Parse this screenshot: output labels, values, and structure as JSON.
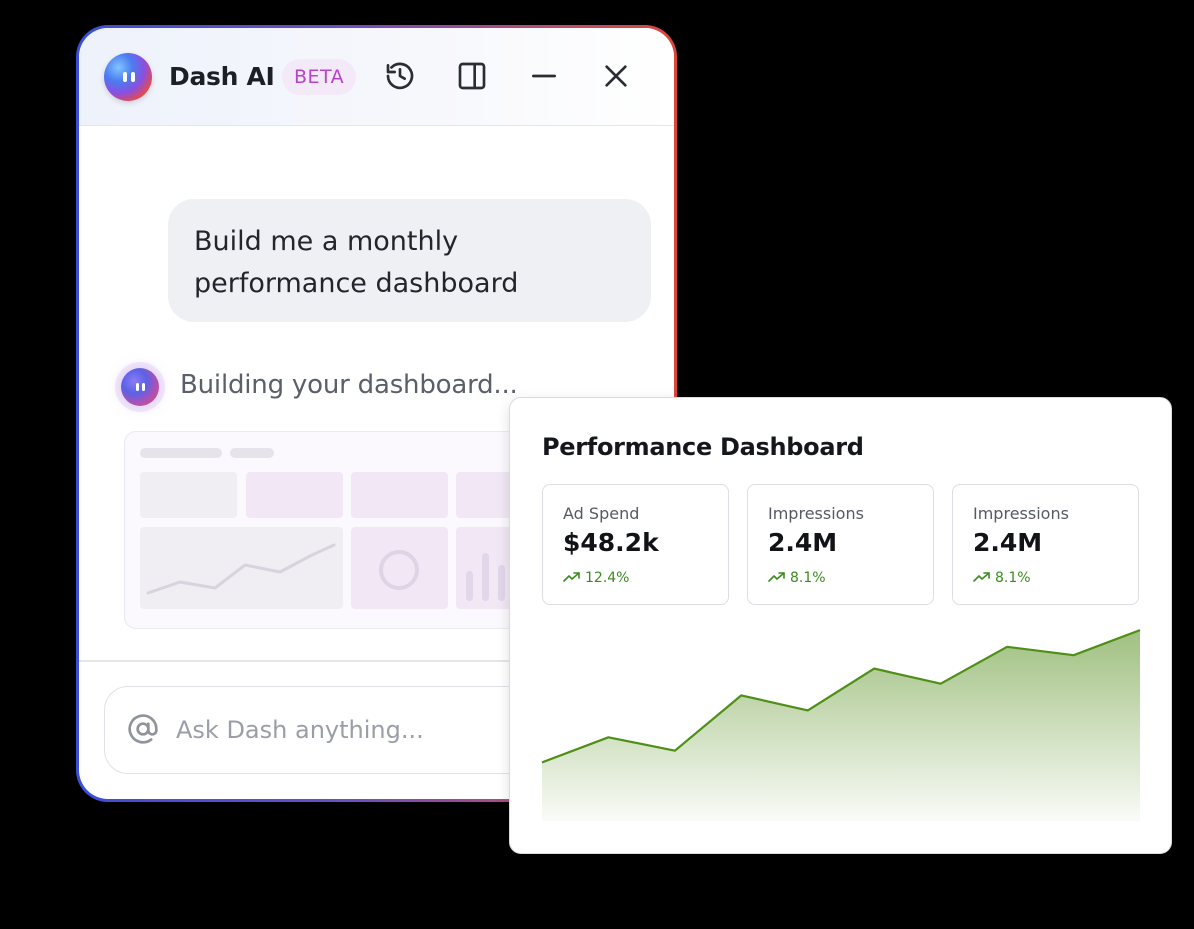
{
  "chat": {
    "title": "Dash AI",
    "badge": "BETA",
    "user_message": "Build me a monthly performance dashboard",
    "assistant_status": "Building your dashboard...",
    "input_placeholder": "Ask Dash anything..."
  },
  "header_icons": [
    "history-icon",
    "sidebar-toggle-icon",
    "minimize-icon",
    "close-icon"
  ],
  "colors": {
    "accent_green": "#4e8f16",
    "badge_text": "#b445c8",
    "frame_gradient_start": "#3a4fd8",
    "frame_gradient_end": "#d9483c"
  },
  "dashboard": {
    "title": "Performance Dashboard",
    "kpis": [
      {
        "label": "Ad Spend",
        "value": "$48.2k",
        "delta": "12.4%"
      },
      {
        "label": "Impressions",
        "value": "2.4M",
        "delta": "8.1%"
      },
      {
        "label": "Impressions",
        "value": "2.4M",
        "delta": "8.1%"
      }
    ]
  },
  "chart_data": {
    "type": "area",
    "x": [
      0,
      1,
      2,
      3,
      4,
      5,
      6,
      7,
      8,
      9
    ],
    "series": [
      {
        "values": [
          35,
          50,
          42,
          75,
          66,
          91,
          82,
          104,
          99,
          114
        ]
      }
    ],
    "ylim": [
      0,
      120
    ],
    "grid": false,
    "title": "",
    "xlabel": "",
    "ylabel": ""
  }
}
